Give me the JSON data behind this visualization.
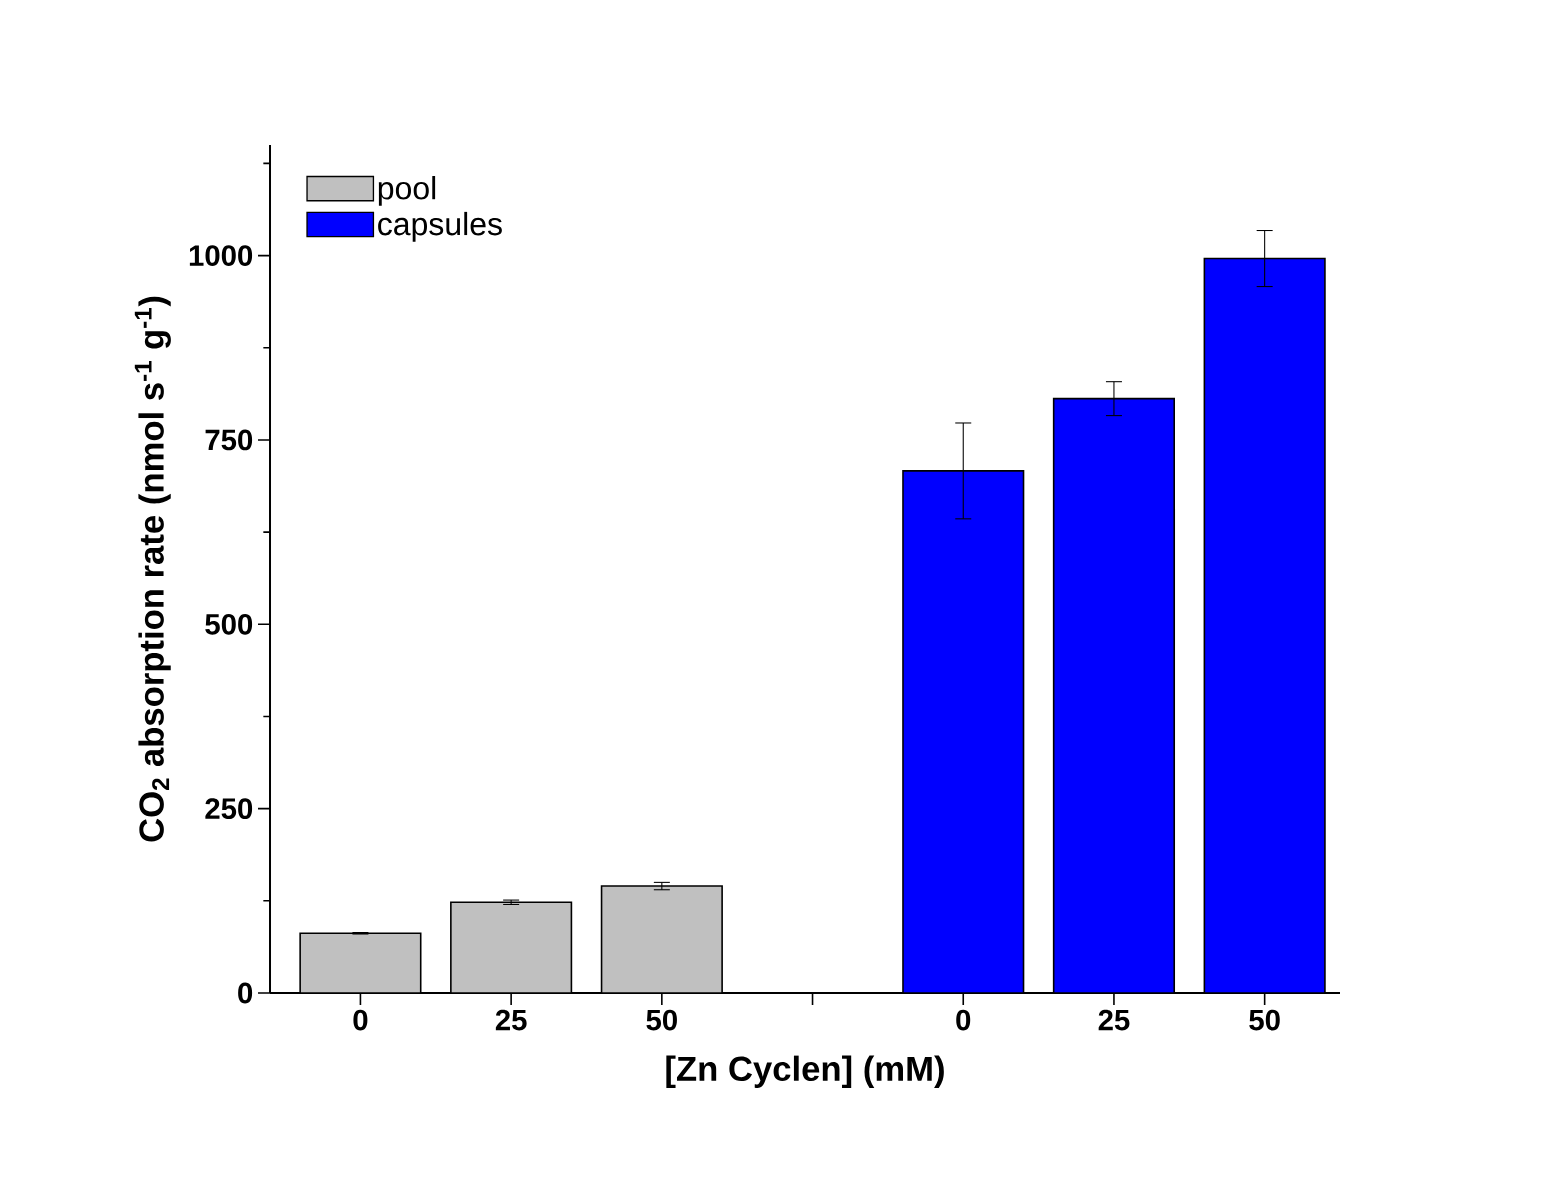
{
  "chart_data": {
    "type": "bar",
    "xlabel": "[Zn Cyclen] (mM)",
    "ylabel": "CO$_{2}$ absorption rate (nmol s$^{-1}$ g$^{-1}$)",
    "categories": [
      "0",
      "25",
      "50",
      null,
      "0",
      "25",
      "50"
    ],
    "series": [
      {
        "name": "pool",
        "color": "#c0c0c0",
        "values": [
          81,
          123,
          145,
          null,
          null,
          null,
          null
        ],
        "errors": [
          1,
          3,
          5,
          null,
          null,
          null,
          null
        ]
      },
      {
        "name": "capsules",
        "color": "#0000ff",
        "values": [
          null,
          null,
          null,
          null,
          708,
          806,
          996
        ],
        "errors": [
          null,
          null,
          null,
          null,
          65,
          23,
          38
        ]
      }
    ],
    "ylim": [
      0,
      1150
    ],
    "yticks": [
      0,
      {
        "value": 125,
        "label": null
      },
      250,
      {
        "value": 375,
        "label": null
      },
      500,
      {
        "value": 625,
        "label": null
      },
      750,
      {
        "value": 875,
        "label": null
      },
      1000,
      {
        "value": 1125,
        "label": null
      }
    ],
    "legend": "top left",
    "grid": false
  }
}
